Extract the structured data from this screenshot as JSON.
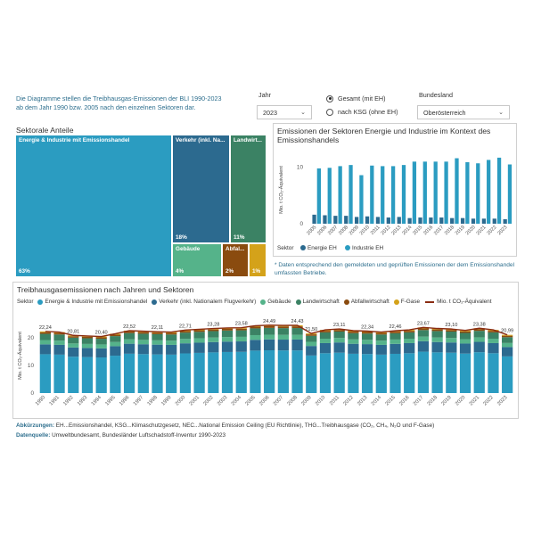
{
  "intro": {
    "line1": "Die Diagramme stellen die Treibhausgas-Emissionen der BLI 1990-2023",
    "line2": "ab dem Jahr 1990 bzw. 2005 nach den einzelnen Sektoren dar."
  },
  "filters": {
    "jahr_label": "Jahr",
    "jahr_value": "2023",
    "radio_gesamt": "Gesamt (mit EH)",
    "radio_ksg": "nach KSG (ohne EH)",
    "bundesland_label": "Bundesland",
    "bundesland_value": "Oberösterreich"
  },
  "treemap": {
    "title": "Sektorale Anteile",
    "tiles": [
      {
        "label": "Energie & Industrie mit Emissionshandel",
        "pct": "63%",
        "color": "#2b9cc1"
      },
      {
        "label": "Verkehr (inkl. Na...",
        "pct": "18%",
        "color": "#2c6a8f"
      },
      {
        "label": "Landwirt...",
        "pct": "11%",
        "color": "#3b8264"
      },
      {
        "label": "Gebäude",
        "pct": "4%",
        "color": "#55b38a"
      },
      {
        "label": "Abfal...",
        "pct": "2%",
        "color": "#8a4b0f"
      },
      {
        "label": "",
        "pct": "1%",
        "color": "#d4a21a"
      }
    ]
  },
  "chart_data": [
    {
      "type": "bar",
      "title": "Emissionen der Sektoren Energie und Industrie im Kontext des Emissionshandels",
      "ylabel": "Mio. t CO₂-Äquivalent",
      "ylim": [
        0,
        12
      ],
      "yticks": [
        0,
        10
      ],
      "categories": [
        "2005",
        "2006",
        "2007",
        "2008",
        "2009",
        "2010",
        "2011",
        "2012",
        "2013",
        "2014",
        "2015",
        "2016",
        "2017",
        "2018",
        "2019",
        "2020",
        "2021",
        "2022",
        "2023"
      ],
      "legend_title": "Sektor",
      "series": [
        {
          "name": "Energie EH",
          "color": "#2c6a8f",
          "values": [
            1.6,
            1.5,
            1.4,
            1.4,
            1.2,
            1.3,
            1.2,
            1.1,
            1.2,
            1.0,
            1.1,
            1.1,
            1.1,
            1.0,
            1.0,
            0.9,
            0.9,
            0.9,
            0.8
          ]
        },
        {
          "name": "Industrie EH",
          "color": "#2b9cc1",
          "values": [
            9.8,
            9.9,
            10.2,
            10.4,
            8.6,
            10.3,
            10.2,
            10.2,
            10.4,
            11.0,
            11.0,
            11.0,
            11.0,
            11.6,
            10.9,
            10.7,
            11.3,
            11.7,
            10.5
          ]
        }
      ]
    },
    {
      "type": "bar",
      "title": "Treibhausgasemissionen nach Jahren und Sektoren",
      "ylabel": "Mio. t CO₂-Äquivalent",
      "ylim": [
        0,
        27
      ],
      "yticks": [
        0,
        10,
        20
      ],
      "legend_title": "Sektor",
      "categories": [
        "1990",
        "1991",
        "1992",
        "1993",
        "1994",
        "1995",
        "1996",
        "1997",
        "1998",
        "1999",
        "2000",
        "2001",
        "2002",
        "2003",
        "2004",
        "2005",
        "2006",
        "2007",
        "2008",
        "2009",
        "2010",
        "2011",
        "2012",
        "2013",
        "2014",
        "2015",
        "2016",
        "2017",
        "2018",
        "2019",
        "2020",
        "2021",
        "2022",
        "2023"
      ],
      "totals": [
        22.24,
        22.0,
        20.81,
        20.6,
        20.4,
        21.4,
        22.52,
        22.3,
        22.11,
        22.0,
        22.71,
        23.0,
        23.28,
        23.5,
        23.58,
        24.3,
        24.49,
        24.4,
        24.43,
        21.5,
        22.8,
        23.11,
        22.5,
        22.34,
        22.0,
        22.46,
        22.8,
        23.67,
        23.3,
        23.1,
        22.6,
        23.38,
        22.8,
        20.99
      ],
      "total_labels": {
        "1990": "22,24",
        "1992": "20,81",
        "1994": "20,40",
        "1996": "22,52",
        "1998": "22,11",
        "2000": "22,71",
        "2002": "23,28",
        "2004": "23,58",
        "2006": "24,49",
        "2008": "24,43",
        "2009": "21,50",
        "2011": "23,11",
        "2013": "22,34",
        "2015": "22,46",
        "2017": "23,67",
        "2019": "23,10",
        "2021": "23,38",
        "2023": "20,99"
      },
      "series": [
        {
          "name": "Energie & Industrie mit Emissionshandel",
          "color": "#2b9cc1",
          "share": 0.63
        },
        {
          "name": "Verkehr (inkl. Nationalem Flugverkehr)",
          "color": "#2c6a8f",
          "share": 0.16
        },
        {
          "name": "Gebäude",
          "color": "#55b38a",
          "share": 0.07
        },
        {
          "name": "Landwirtschaft",
          "color": "#3b8264",
          "share": 0.1
        },
        {
          "name": "Abfallwirtschaft",
          "color": "#8a4b0f",
          "share": 0.025
        },
        {
          "name": "F-Gase",
          "color": "#d4a21a",
          "share": 0.015
        }
      ],
      "line_series": {
        "name": "Mio. t CO₂-Äquivalent",
        "color": "#8a2c12"
      }
    }
  ],
  "note": {
    "line1": "* Daten entsprechend den gemeldeten und geprüften Emissionen der dem Emissionshandel",
    "line2": "umfassten Betriebe."
  },
  "footer": {
    "abbr_label": "Abkürzungen:",
    "abbr_text": "EH...Emissionshandel, KSG...Klimaschutzgesetz, NEC...National Emission Ceiling (EU Richtlinie), THG...Treibhausgase (CO₂, CH₄, N₂O und F-Gase)",
    "source_label": "Datenquelle:",
    "source_text": "Umweltbundesamt, Bundesländer Luftschadstoff-Inventur 1990-2023"
  }
}
